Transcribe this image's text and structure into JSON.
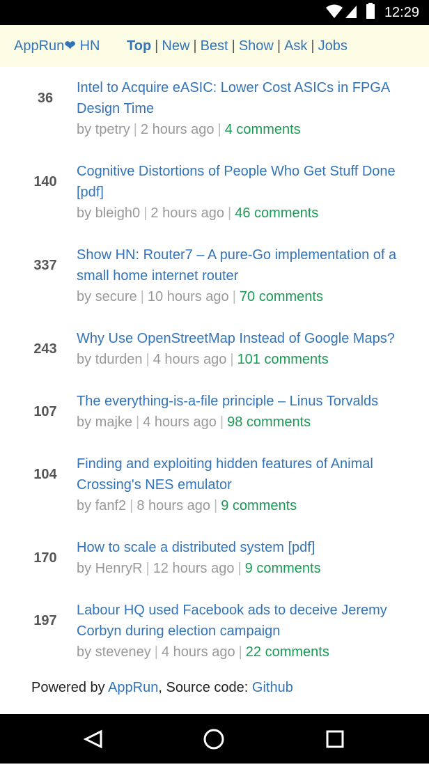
{
  "status_bar": {
    "time": "12:29"
  },
  "header": {
    "brand": "AppRun❤ HN",
    "separator": "|",
    "nav": [
      "Top",
      "New",
      "Best",
      "Show",
      "Ask",
      "Jobs"
    ],
    "active": "Top"
  },
  "items": [
    {
      "score": 36,
      "title": "Intel to Acquire eASIC: Lower Cost ASICs in FPGA Design Time",
      "by": "by tpetry",
      "time": "2 hours ago",
      "comments": "4 comments"
    },
    {
      "score": 140,
      "title": "Cognitive Distortions of People Who Get Stuff Done [pdf]",
      "by": "by bleigh0",
      "time": "2 hours ago",
      "comments": "46 comments"
    },
    {
      "score": 337,
      "title": "Show HN: Router7 – A pure-Go implementation of a small home internet router",
      "by": "by secure",
      "time": "10 hours ago",
      "comments": "70 comments"
    },
    {
      "score": 243,
      "title": "Why Use OpenStreetMap Instead of Google Maps?",
      "by": "by tdurden",
      "time": "4 hours ago",
      "comments": "101 comments"
    },
    {
      "score": 107,
      "title": "The everything-is-a-file principle – Linus Torvalds",
      "by": "by majke",
      "time": "4 hours ago",
      "comments": "98 comments"
    },
    {
      "score": 104,
      "title": "Finding and exploiting hidden features of Animal Crossing's NES emulator",
      "by": "by fanf2",
      "time": "8 hours ago",
      "comments": "9 comments"
    },
    {
      "score": 170,
      "title": "How to scale a distributed system [pdf]",
      "by": "by HenryR",
      "time": "12 hours ago",
      "comments": "9 comments"
    },
    {
      "score": 197,
      "title": "Labour HQ used Facebook ads to deceive Jeremy Corbyn during election campaign",
      "by": "by steveney",
      "time": "4 hours ago",
      "comments": "22 comments"
    }
  ],
  "footer": {
    "prefix": "Powered by ",
    "apprun": "AppRun",
    "middle": ", Source code: ",
    "github": "Github"
  }
}
